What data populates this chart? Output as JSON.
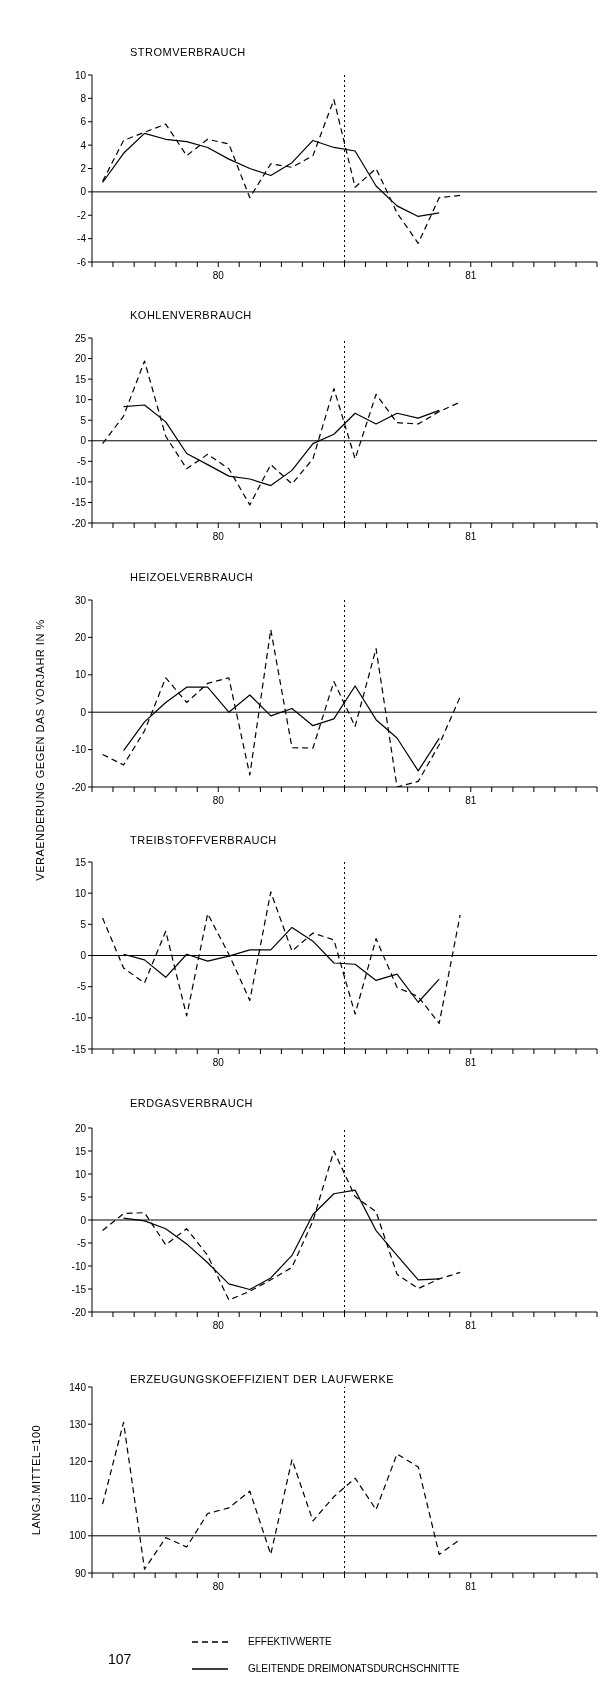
{
  "chart_data": [
    {
      "type": "line",
      "title": "STROMVERBRAUCH",
      "marker": "none",
      "legend": false,
      "x": [
        79.542,
        79.625,
        79.708,
        79.792,
        79.875,
        79.958,
        80.042,
        80.125,
        80.208,
        80.292,
        80.375,
        80.458,
        80.542,
        80.625,
        80.708,
        80.792,
        80.875,
        80.958
      ],
      "xlim": [
        79.5,
        81.5
      ],
      "xticks": [
        {
          "value": 79.5,
          "label": null
        },
        {
          "value": 79.583,
          "label": null
        },
        {
          "value": 79.667,
          "label": null
        },
        {
          "value": 79.75,
          "label": null
        },
        {
          "value": 79.833,
          "label": null
        },
        {
          "value": 79.917,
          "label": null
        },
        {
          "value": 80,
          "label": "80"
        },
        {
          "value": 80.083,
          "label": null
        },
        {
          "value": 80.167,
          "label": null
        },
        {
          "value": 80.25,
          "label": null
        },
        {
          "value": 80.333,
          "label": null
        },
        {
          "value": 80.417,
          "label": null
        },
        {
          "value": 80.5,
          "label": null
        },
        {
          "value": 80.583,
          "label": null
        },
        {
          "value": 80.667,
          "label": null
        },
        {
          "value": 80.75,
          "label": null
        },
        {
          "value": 80.833,
          "label": null
        },
        {
          "value": 80.917,
          "label": null
        },
        {
          "value": 81,
          "label": "81"
        },
        {
          "value": 81.083,
          "label": null
        },
        {
          "value": 81.167,
          "label": null
        },
        {
          "value": 81.25,
          "label": null
        },
        {
          "value": 81.333,
          "label": null
        },
        {
          "value": 81.417,
          "label": null
        },
        {
          "value": 81.5,
          "label": null
        }
      ],
      "ylim": [
        -6,
        10
      ],
      "yticks": [
        -6,
        -4,
        -2,
        0,
        2,
        4,
        6,
        8,
        10
      ],
      "ref_lines": [
        {
          "axis": "y",
          "value": 0,
          "color": "#000000",
          "line_style": "solid"
        },
        {
          "axis": "x",
          "value": 80.5,
          "color": "#000000",
          "line_style": "dotted"
        }
      ],
      "series": [
        {
          "color": "#000000",
          "line_style": "dashed",
          "values": [
            0.9,
            4.4,
            5.1,
            5.8,
            3.1,
            4.5,
            4.1,
            -0.5,
            2.4,
            2.1,
            3.1,
            7.9,
            0.4,
            2.0,
            -1.8,
            -4.4,
            -0.5,
            -0.3
          ]
        },
        {
          "color": "#000000",
          "line_style": "solid",
          "values": [
            0.8,
            3.3,
            5.0,
            4.5,
            4.3,
            3.8,
            2.8,
            2.0,
            1.4,
            2.5,
            4.4,
            3.8,
            3.5,
            0.5,
            -1.2,
            -2.1,
            -1.8,
            null
          ]
        }
      ]
    },
    {
      "type": "line",
      "title": "KOHLENVERBRAUCH",
      "marker": "none",
      "legend": false,
      "x": [
        79.542,
        79.625,
        79.708,
        79.792,
        79.875,
        79.958,
        80.042,
        80.125,
        80.208,
        80.292,
        80.375,
        80.458,
        80.542,
        80.625,
        80.708,
        80.792,
        80.875,
        80.958
      ],
      "xlim": [
        79.5,
        81.5
      ],
      "xticks": [
        {
          "value": 79.5,
          "label": null
        },
        {
          "value": 79.583,
          "label": null
        },
        {
          "value": 79.667,
          "label": null
        },
        {
          "value": 79.75,
          "label": null
        },
        {
          "value": 79.833,
          "label": null
        },
        {
          "value": 79.917,
          "label": null
        },
        {
          "value": 80,
          "label": "80"
        },
        {
          "value": 80.083,
          "label": null
        },
        {
          "value": 80.167,
          "label": null
        },
        {
          "value": 80.25,
          "label": null
        },
        {
          "value": 80.333,
          "label": null
        },
        {
          "value": 80.417,
          "label": null
        },
        {
          "value": 80.5,
          "label": null
        },
        {
          "value": 80.583,
          "label": null
        },
        {
          "value": 80.667,
          "label": null
        },
        {
          "value": 80.75,
          "label": null
        },
        {
          "value": 80.833,
          "label": null
        },
        {
          "value": 80.917,
          "label": null
        },
        {
          "value": 81,
          "label": "81"
        },
        {
          "value": 81.083,
          "label": null
        },
        {
          "value": 81.167,
          "label": null
        },
        {
          "value": 81.25,
          "label": null
        },
        {
          "value": 81.333,
          "label": null
        },
        {
          "value": 81.417,
          "label": null
        },
        {
          "value": 81.5,
          "label": null
        }
      ],
      "ylim": [
        -20,
        25
      ],
      "yticks": [
        -20,
        -15,
        -10,
        -5,
        0,
        5,
        10,
        15,
        20,
        25
      ],
      "ref_lines": [
        {
          "axis": "y",
          "value": 0,
          "color": "#000000",
          "line_style": "solid"
        },
        {
          "axis": "x",
          "value": 80.5,
          "color": "#000000",
          "line_style": "dotted"
        }
      ],
      "series": [
        {
          "color": "#000000",
          "line_style": "dashed",
          "values": [
            -0.7,
            6,
            19.4,
            1.1,
            -6.8,
            -3.3,
            -6.8,
            -15.6,
            -5.8,
            -10.5,
            -4.4,
            12.7,
            -4.4,
            11.3,
            4.4,
            4.1,
            7.1,
            9.4
          ]
        },
        {
          "color": "#000000",
          "line_style": "solid",
          "values": [
            null,
            8.3,
            8.7,
            4.6,
            -3.1,
            -5.8,
            -8.6,
            -9.3,
            -10.9,
            -7.2,
            -0.7,
            1.6,
            6.7,
            4.1,
            6.7,
            5.5,
            7.4,
            null
          ]
        }
      ]
    },
    {
      "type": "line",
      "title": "HEIZOELVERBRAUCH",
      "ylabel": "VERAENDERUNG GEGEN DAS VORJAHR IN %",
      "marker": "none",
      "legend": false,
      "x": [
        79.542,
        79.625,
        79.708,
        79.792,
        79.875,
        79.958,
        80.042,
        80.125,
        80.208,
        80.292,
        80.375,
        80.458,
        80.542,
        80.625,
        80.708,
        80.792,
        80.875,
        80.958
      ],
      "xlim": [
        79.5,
        81.5
      ],
      "xticks": [
        {
          "value": 79.5,
          "label": null
        },
        {
          "value": 79.583,
          "label": null
        },
        {
          "value": 79.667,
          "label": null
        },
        {
          "value": 79.75,
          "label": null
        },
        {
          "value": 79.833,
          "label": null
        },
        {
          "value": 79.917,
          "label": null
        },
        {
          "value": 80,
          "label": "80"
        },
        {
          "value": 80.083,
          "label": null
        },
        {
          "value": 80.167,
          "label": null
        },
        {
          "value": 80.25,
          "label": null
        },
        {
          "value": 80.333,
          "label": null
        },
        {
          "value": 80.417,
          "label": null
        },
        {
          "value": 80.5,
          "label": null
        },
        {
          "value": 80.583,
          "label": null
        },
        {
          "value": 80.667,
          "label": null
        },
        {
          "value": 80.75,
          "label": null
        },
        {
          "value": 80.833,
          "label": null
        },
        {
          "value": 80.917,
          "label": null
        },
        {
          "value": 81,
          "label": "81"
        },
        {
          "value": 81.083,
          "label": null
        },
        {
          "value": 81.167,
          "label": null
        },
        {
          "value": 81.25,
          "label": null
        },
        {
          "value": 81.333,
          "label": null
        },
        {
          "value": 81.417,
          "label": null
        },
        {
          "value": 81.5,
          "label": null
        }
      ],
      "ylim": [
        -20,
        30
      ],
      "yticks": [
        -20,
        -10,
        0,
        10,
        20,
        30
      ],
      "ref_lines": [
        {
          "axis": "y",
          "value": 0,
          "color": "#000000",
          "line_style": "solid"
        },
        {
          "axis": "x",
          "value": 80.5,
          "color": "#000000",
          "line_style": "dotted"
        }
      ],
      "series": [
        {
          "color": "#000000",
          "line_style": "dashed",
          "values": [
            -11.3,
            -14.1,
            -5,
            9.2,
            2.6,
            7.7,
            9.2,
            -16.8,
            22.1,
            -9.5,
            -9.6,
            8.2,
            -3.8,
            17,
            -20,
            -18.5,
            -8.7,
            4.1
          ]
        },
        {
          "color": "#000000",
          "line_style": "solid",
          "values": [
            null,
            -10.3,
            -2.6,
            2.6,
            6.7,
            6.7,
            0,
            4.6,
            -1,
            1,
            -3.6,
            -1.8,
            7,
            -2,
            -6.9,
            -15.7,
            -7,
            null
          ]
        }
      ]
    },
    {
      "type": "line",
      "title": "TREIBSTOFFVERBRAUCH",
      "marker": "none",
      "legend": false,
      "x": [
        79.542,
        79.625,
        79.708,
        79.792,
        79.875,
        79.958,
        80.042,
        80.125,
        80.208,
        80.292,
        80.375,
        80.458,
        80.542,
        80.625,
        80.708,
        80.792,
        80.875,
        80.958
      ],
      "xlim": [
        79.5,
        81.5
      ],
      "xticks": [
        {
          "value": 79.5,
          "label": null
        },
        {
          "value": 79.583,
          "label": null
        },
        {
          "value": 79.667,
          "label": null
        },
        {
          "value": 79.75,
          "label": null
        },
        {
          "value": 79.833,
          "label": null
        },
        {
          "value": 79.917,
          "label": null
        },
        {
          "value": 80,
          "label": "80"
        },
        {
          "value": 80.083,
          "label": null
        },
        {
          "value": 80.167,
          "label": null
        },
        {
          "value": 80.25,
          "label": null
        },
        {
          "value": 80.333,
          "label": null
        },
        {
          "value": 80.417,
          "label": null
        },
        {
          "value": 80.5,
          "label": null
        },
        {
          "value": 80.583,
          "label": null
        },
        {
          "value": 80.667,
          "label": null
        },
        {
          "value": 80.75,
          "label": null
        },
        {
          "value": 80.833,
          "label": null
        },
        {
          "value": 80.917,
          "label": null
        },
        {
          "value": 81,
          "label": "81"
        },
        {
          "value": 81.083,
          "label": null
        },
        {
          "value": 81.167,
          "label": null
        },
        {
          "value": 81.25,
          "label": null
        },
        {
          "value": 81.333,
          "label": null
        },
        {
          "value": 81.417,
          "label": null
        },
        {
          "value": 81.5,
          "label": null
        }
      ],
      "ylim": [
        -15,
        15
      ],
      "yticks": [
        -15,
        -10,
        -5,
        0,
        5,
        10,
        15
      ],
      "ref_lines": [
        {
          "axis": "y",
          "value": 0,
          "color": "#000000",
          "line_style": "solid"
        },
        {
          "axis": "x",
          "value": 80.5,
          "color": "#000000",
          "line_style": "dotted"
        }
      ],
      "series": [
        {
          "color": "#000000",
          "line_style": "dashed",
          "values": [
            6,
            -2,
            -4.4,
            3.9,
            -9.7,
            6.7,
            0.2,
            -7.2,
            10.2,
            0.7,
            3.6,
            2.5,
            -9.4,
            2.7,
            -5.1,
            -6.6,
            -10.9,
            6.5
          ]
        },
        {
          "color": "#000000",
          "line_style": "solid",
          "values": [
            null,
            0.2,
            -0.7,
            -3.5,
            0.2,
            -0.9,
            -0.1,
            0.9,
            0.9,
            4.5,
            2.3,
            -1.2,
            -1.4,
            -4,
            -3,
            -7.5,
            -3.8,
            null
          ]
        }
      ]
    },
    {
      "type": "line",
      "title": "ERDGASVERBRAUCH",
      "marker": "none",
      "legend": "bottom",
      "x": [
        79.542,
        79.625,
        79.708,
        79.792,
        79.875,
        79.958,
        80.042,
        80.125,
        80.208,
        80.292,
        80.375,
        80.458,
        80.542,
        80.625,
        80.708,
        80.792,
        80.875,
        80.958
      ],
      "xlim": [
        79.5,
        81.5
      ],
      "xticks": [
        {
          "value": 79.5,
          "label": null
        },
        {
          "value": 79.583,
          "label": null
        },
        {
          "value": 79.667,
          "label": null
        },
        {
          "value": 79.75,
          "label": null
        },
        {
          "value": 79.833,
          "label": null
        },
        {
          "value": 79.917,
          "label": null
        },
        {
          "value": 80,
          "label": "80"
        },
        {
          "value": 80.083,
          "label": null
        },
        {
          "value": 80.167,
          "label": null
        },
        {
          "value": 80.25,
          "label": null
        },
        {
          "value": 80.333,
          "label": null
        },
        {
          "value": 80.417,
          "label": null
        },
        {
          "value": 80.5,
          "label": null
        },
        {
          "value": 80.583,
          "label": null
        },
        {
          "value": 80.667,
          "label": null
        },
        {
          "value": 80.75,
          "label": null
        },
        {
          "value": 80.833,
          "label": null
        },
        {
          "value": 80.917,
          "label": null
        },
        {
          "value": 81,
          "label": "81"
        },
        {
          "value": 81.083,
          "label": null
        },
        {
          "value": 81.167,
          "label": null
        },
        {
          "value": 81.25,
          "label": null
        },
        {
          "value": 81.333,
          "label": null
        },
        {
          "value": 81.417,
          "label": null
        },
        {
          "value": 81.5,
          "label": null
        }
      ],
      "ylim": [
        -20,
        20
      ],
      "yticks": [
        -20,
        -15,
        -10,
        -5,
        0,
        5,
        10,
        15,
        20
      ],
      "ref_lines": [
        {
          "axis": "y",
          "value": 0,
          "color": "#000000",
          "line_style": "solid"
        },
        {
          "axis": "x",
          "value": 80.5,
          "color": "#000000",
          "line_style": "dotted"
        }
      ],
      "series": [
        {
          "name": "EFFEKTIVWERTE",
          "color": "#000000",
          "line_style": "dashed",
          "values": [
            -2.3,
            1.4,
            1.6,
            -5.4,
            -1.9,
            -7.7,
            -17.4,
            -15.5,
            -13,
            -10.3,
            -0.2,
            15,
            5.1,
            1.8,
            -11.8,
            -14.9,
            -12.8,
            -11.4
          ]
        },
        {
          "name": "GLEITENDE DREIMONATSDURCHSCHNITTE",
          "color": "#000000",
          "line_style": "solid",
          "values": [
            null,
            0.4,
            -0.2,
            -1.9,
            -5.2,
            -9.3,
            -13.9,
            -15.1,
            -12.6,
            -7.7,
            1.2,
            5.7,
            6.5,
            -2.3,
            -7.7,
            -13,
            -12.8,
            null
          ]
        }
      ]
    },
    {
      "type": "line",
      "title": "ERZEUGUNGSKOEFFIZIENT DER LAUFWERKE",
      "ylabel": "LANGJ.MITTEL=100",
      "annotations": [
        "107"
      ],
      "marker": "none",
      "legend": false,
      "x": [
        79.542,
        79.625,
        79.708,
        79.792,
        79.875,
        79.958,
        80.042,
        80.125,
        80.208,
        80.292,
        80.375,
        80.458,
        80.542,
        80.625,
        80.708,
        80.792,
        80.875,
        80.958
      ],
      "xlim": [
        79.5,
        81.5
      ],
      "xticks": [
        {
          "value": 79.5,
          "label": null
        },
        {
          "value": 79.583,
          "label": null
        },
        {
          "value": 79.667,
          "label": null
        },
        {
          "value": 79.75,
          "label": null
        },
        {
          "value": 79.833,
          "label": null
        },
        {
          "value": 79.917,
          "label": null
        },
        {
          "value": 80,
          "label": "80"
        },
        {
          "value": 80.083,
          "label": null
        },
        {
          "value": 80.167,
          "label": null
        },
        {
          "value": 80.25,
          "label": null
        },
        {
          "value": 80.333,
          "label": null
        },
        {
          "value": 80.417,
          "label": null
        },
        {
          "value": 80.5,
          "label": null
        },
        {
          "value": 80.583,
          "label": null
        },
        {
          "value": 80.667,
          "label": null
        },
        {
          "value": 80.75,
          "label": null
        },
        {
          "value": 80.833,
          "label": null
        },
        {
          "value": 80.917,
          "label": null
        },
        {
          "value": 81,
          "label": "81"
        },
        {
          "value": 81.083,
          "label": null
        },
        {
          "value": 81.167,
          "label": null
        },
        {
          "value": 81.25,
          "label": null
        },
        {
          "value": 81.333,
          "label": null
        },
        {
          "value": 81.417,
          "label": null
        },
        {
          "value": 81.5,
          "label": null
        }
      ],
      "ylim": [
        90,
        140
      ],
      "yticks": [
        90,
        100,
        110,
        120,
        130,
        140
      ],
      "ref_lines": [
        {
          "axis": "y",
          "value": 100,
          "color": "#000000",
          "line_style": "solid"
        },
        {
          "axis": "x",
          "value": 80.5,
          "color": "#000000",
          "line_style": "dotted"
        }
      ],
      "series": [
        {
          "color": "#000000",
          "line_style": "dashed",
          "values": [
            108.5,
            130.5,
            91,
            99.5,
            97,
            106,
            107.5,
            112,
            95,
            120.5,
            104,
            110.5,
            115.5,
            107,
            122,
            118.5,
            95,
            99
          ]
        }
      ]
    }
  ]
}
